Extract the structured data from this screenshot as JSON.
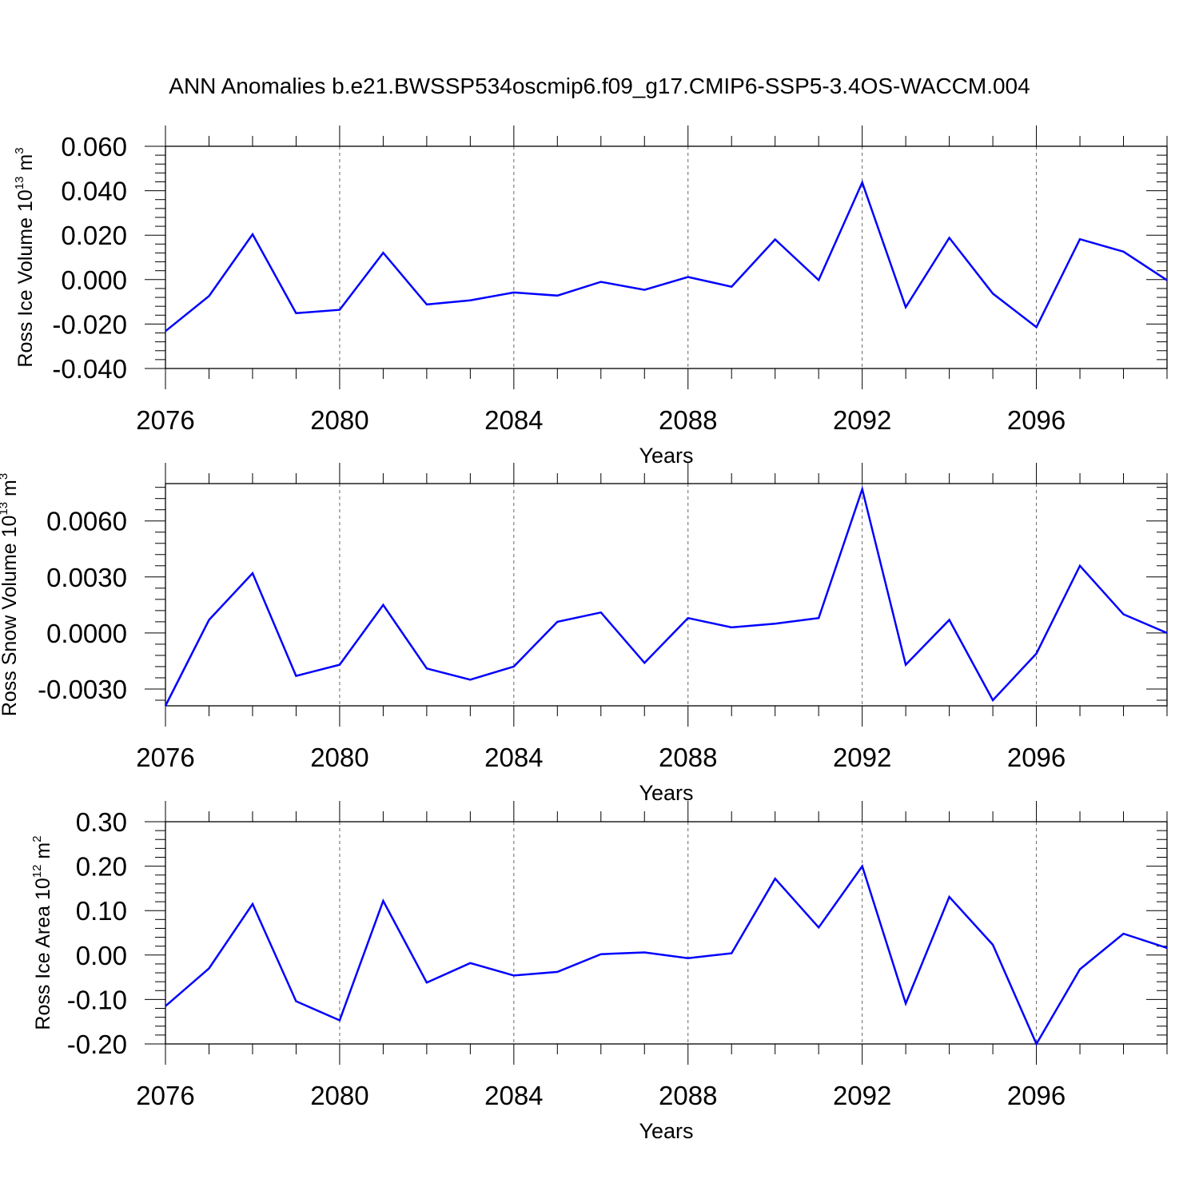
{
  "title": "ANN Anomalies b.e21.BWSSP534oscmip6.f09_g17.CMIP6-SSP5-3.4OS-WACCM.004",
  "colors": {
    "series": "#0000ff",
    "axes": "#000000",
    "grid": "#666666"
  },
  "chart_data": [
    {
      "type": "line",
      "title": "",
      "xlabel": "Years",
      "ylabel": {
        "text": "Ross Ice Volume 10",
        "exp": "13",
        "unit": " m",
        "unit_exp": "3"
      },
      "xlim": [
        2076,
        2099
      ],
      "ylim": [
        -0.04,
        0.06
      ],
      "xticks": [
        2076,
        2080,
        2084,
        2088,
        2092,
        2096
      ],
      "yticks": [
        -0.04,
        -0.02,
        0.0,
        0.02,
        0.04,
        0.06
      ],
      "ytick_labels": [
        "-0.040",
        "-0.020",
        "0.000",
        "0.020",
        "0.040",
        "0.060"
      ],
      "grid": "x-dashed",
      "x": [
        2076,
        2077,
        2078,
        2079,
        2080,
        2081,
        2082,
        2083,
        2084,
        2085,
        2086,
        2087,
        2088,
        2089,
        2090,
        2091,
        2092,
        2093,
        2094,
        2095,
        2096,
        2097,
        2098,
        2099
      ],
      "y": [
        -0.0232,
        -0.0074,
        0.0204,
        -0.0151,
        -0.0136,
        0.0121,
        -0.0112,
        -0.0093,
        -0.0058,
        -0.0072,
        -0.001,
        -0.0046,
        0.0012,
        -0.0032,
        0.0181,
        -0.0002,
        0.0437,
        -0.0124,
        0.0188,
        -0.0063,
        -0.0214,
        0.0182,
        0.0126,
        -0.0003
      ]
    },
    {
      "type": "line",
      "title": "",
      "xlabel": "Years",
      "ylabel": {
        "text": "Ross Snow Volume 10",
        "exp": "13",
        "unit": " m",
        "unit_exp": "3"
      },
      "xlim": [
        2076,
        2099
      ],
      "ylim": [
        -0.0039,
        0.008
      ],
      "xticks": [
        2076,
        2080,
        2084,
        2088,
        2092,
        2096
      ],
      "yticks": [
        -0.003,
        0.0,
        0.003,
        0.006
      ],
      "ytick_labels": [
        "-0.0030",
        "0.0000",
        "0.0030",
        "0.0060"
      ],
      "grid": "x-dashed",
      "x": [
        2076,
        2077,
        2078,
        2079,
        2080,
        2081,
        2082,
        2083,
        2084,
        2085,
        2086,
        2087,
        2088,
        2089,
        2090,
        2091,
        2092,
        2093,
        2094,
        2095,
        2096,
        2097,
        2098,
        2099
      ],
      "y": [
        -0.0039,
        0.0007,
        0.0032,
        -0.0023,
        -0.0017,
        0.0015,
        -0.0019,
        -0.0025,
        -0.0018,
        0.0006,
        0.0011,
        -0.0016,
        0.0008,
        0.0003,
        0.0005,
        0.0008,
        0.0077,
        -0.0017,
        0.0007,
        -0.0036,
        -0.0011,
        0.0036,
        0.001,
        0.0
      ]
    },
    {
      "type": "line",
      "title": "",
      "xlabel": "Years",
      "ylabel": {
        "text": "Ross Ice Area 10",
        "exp": "12",
        "unit": " m",
        "unit_exp": "2"
      },
      "xlim": [
        2076,
        2099
      ],
      "ylim": [
        -0.2,
        0.3
      ],
      "xticks": [
        2076,
        2080,
        2084,
        2088,
        2092,
        2096
      ],
      "yticks": [
        -0.2,
        -0.1,
        0.0,
        0.1,
        0.2,
        0.3
      ],
      "ytick_labels": [
        "-0.20",
        "-0.10",
        "0.00",
        "0.10",
        "0.20",
        "0.30"
      ],
      "grid": "x-dashed",
      "x": [
        2076,
        2077,
        2078,
        2079,
        2080,
        2081,
        2082,
        2083,
        2084,
        2085,
        2086,
        2087,
        2088,
        2089,
        2090,
        2091,
        2092,
        2093,
        2094,
        2095,
        2096,
        2097,
        2098,
        2099
      ],
      "y": [
        -0.115,
        -0.03,
        0.115,
        -0.104,
        -0.147,
        0.122,
        -0.062,
        -0.018,
        -0.046,
        -0.038,
        0.002,
        0.006,
        -0.007,
        0.004,
        0.172,
        0.062,
        0.2,
        -0.109,
        0.131,
        0.023,
        -0.2,
        -0.032,
        0.048,
        0.016
      ]
    }
  ]
}
